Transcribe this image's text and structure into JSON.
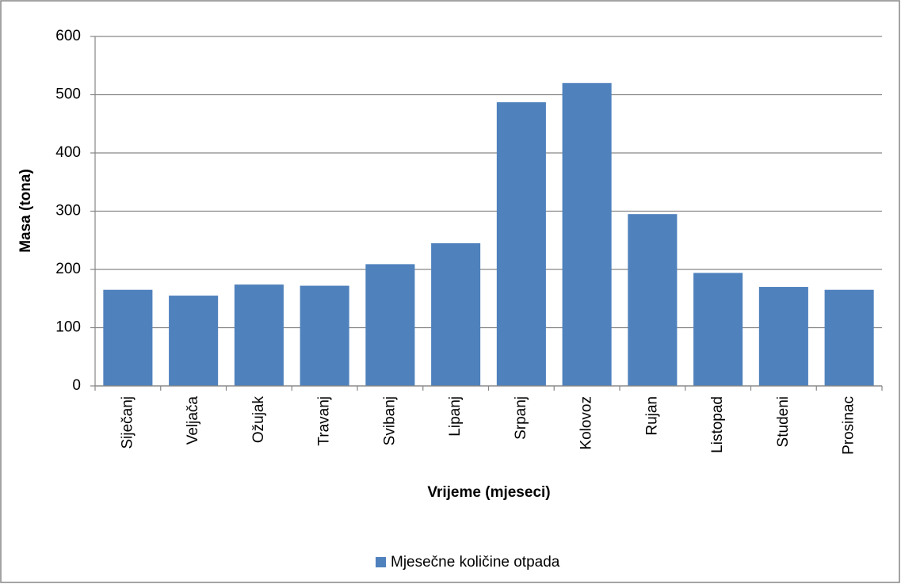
{
  "chart_data": {
    "type": "bar",
    "x_label": "Vrijeme (mjeseci)",
    "y_label": "Masa (tona)",
    "categories": [
      "Siječanj",
      "Veljača",
      "Ožujak",
      "Travanj",
      "Svibanj",
      "Lipanj",
      "Srpanj",
      "Kolovoz",
      "Rujan",
      "Listopad",
      "Studeni",
      "Prosinac"
    ],
    "series": [
      {
        "name": "Mjesečne količine otpada",
        "color": "#4f81bd",
        "values": [
          165,
          155,
          174,
          172,
          209,
          245,
          487,
          520,
          295,
          194,
          170,
          165
        ]
      }
    ],
    "ylim": [
      0,
      600
    ],
    "yticks": [
      0,
      100,
      200,
      300,
      400,
      500,
      600
    ],
    "grid": true,
    "legend": "bottom"
  }
}
